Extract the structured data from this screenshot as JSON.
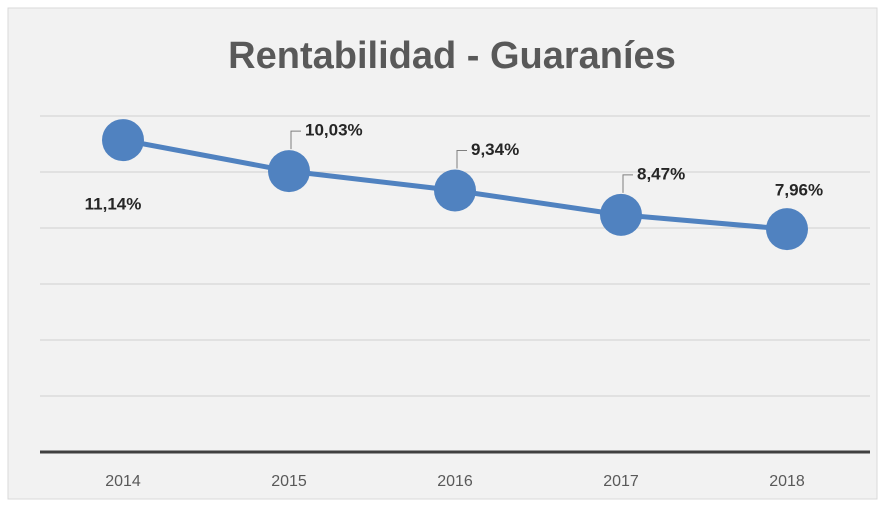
{
  "chart_data": {
    "type": "line",
    "title": "Rentabilidad - Guaraníes",
    "categories": [
      "2014",
      "2015",
      "2016",
      "2017",
      "2018"
    ],
    "series": [
      {
        "name": "Rentabilidad",
        "color": "#5082c0",
        "values": [
          11.14,
          10.03,
          9.34,
          8.47,
          7.96
        ],
        "value_labels": [
          "11,14%",
          "10,03%",
          "9,34%",
          "8,47%",
          "7,96%"
        ]
      }
    ],
    "ylim": [
      0,
      12
    ],
    "yticks": [
      0,
      2,
      4,
      6,
      8,
      10,
      12
    ],
    "grid": true
  }
}
